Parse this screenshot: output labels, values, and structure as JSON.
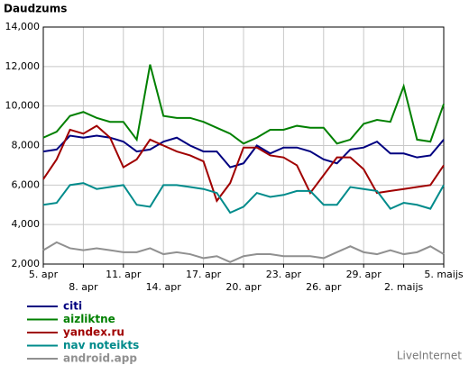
{
  "chart_data": {
    "type": "line",
    "title": "Daudzums",
    "watermark": "LiveInternet",
    "categories": [
      "5. apr",
      null,
      null,
      "8. apr",
      null,
      null,
      "11. apr",
      null,
      null,
      "14. apr",
      null,
      null,
      "17. apr",
      null,
      null,
      "20. apr",
      null,
      null,
      "23. apr",
      null,
      null,
      "26. apr",
      null,
      null,
      "29. apr",
      null,
      null,
      "2. maijs",
      null,
      null,
      "5. maijs"
    ],
    "ylim": [
      2000,
      14000
    ],
    "yticks": [
      {
        "value": 2000,
        "label": "2,000"
      },
      {
        "value": 4000,
        "label": "4,000"
      },
      {
        "value": 6000,
        "label": "6,000"
      },
      {
        "value": 8000,
        "label": "8,000"
      },
      {
        "value": 10000,
        "label": "10,000"
      },
      {
        "value": 12000,
        "label": "12,000"
      },
      {
        "value": 14000,
        "label": "14,000"
      }
    ],
    "grid": true,
    "series": [
      {
        "name": "citi",
        "color": "#000080",
        "values": [
          7700,
          7800,
          8500,
          8400,
          8500,
          8400,
          8200,
          7700,
          7800,
          8200,
          8400,
          8000,
          7700,
          7700,
          6900,
          7100,
          8000,
          7600,
          7900,
          7900,
          7700,
          7300,
          7100,
          7800,
          7900,
          8200,
          7600,
          7600,
          7400,
          7500,
          8300
        ]
      },
      {
        "name": "aizliktne",
        "color": "#008000",
        "values": [
          8400,
          8700,
          9500,
          9700,
          9400,
          9200,
          9200,
          8300,
          12100,
          9500,
          9400,
          9400,
          9200,
          8900,
          8600,
          8100,
          8400,
          8800,
          8800,
          9000,
          8900,
          8900,
          8100,
          8300,
          9100,
          9300,
          9200,
          11000,
          8300,
          8200,
          10100
        ]
      },
      {
        "name": "yandex.ru",
        "color": "#a00000",
        "values": [
          6300,
          7300,
          8800,
          8600,
          9000,
          8400,
          6900,
          7300,
          8300,
          8000,
          7700,
          7500,
          7200,
          5200,
          6100,
          7900,
          7900,
          7500,
          7400,
          7000,
          5600,
          6500,
          7400,
          7400,
          6800,
          5600,
          5700,
          5800,
          5900,
          6000,
          7000
        ]
      },
      {
        "name": "nav noteikts",
        "color": "#008b8b",
        "values": [
          5000,
          5100,
          6000,
          6100,
          5800,
          5900,
          6000,
          5000,
          4900,
          6000,
          6000,
          5900,
          5800,
          5600,
          4600,
          4900,
          5600,
          5400,
          5500,
          5700,
          5700,
          5000,
          5000,
          5900,
          5800,
          5700,
          4800,
          5100,
          5000,
          4800,
          6000
        ]
      },
      {
        "name": "android.app",
        "color": "#909090",
        "values": [
          2700,
          3100,
          2800,
          2700,
          2800,
          2700,
          2600,
          2600,
          2800,
          2500,
          2600,
          2500,
          2300,
          2400,
          2100,
          2400,
          2500,
          2500,
          2400,
          2400,
          2400,
          2300,
          2600,
          2900,
          2600,
          2500,
          2700,
          2500,
          2600,
          2900,
          2500
        ]
      }
    ]
  }
}
